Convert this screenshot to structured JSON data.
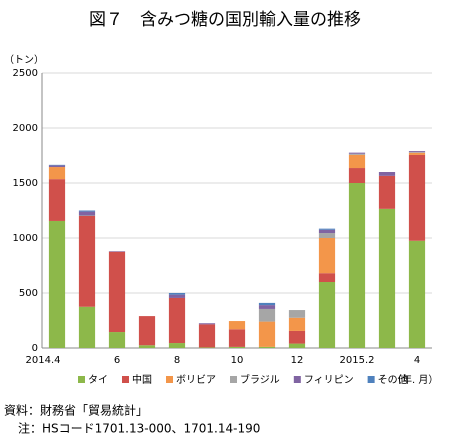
{
  "chart_data": {
    "type": "stacked_bar",
    "title": "図７　含みつ糖の国別輸入量の推移",
    "y_label": "（トン）",
    "x_label": "（年. 月）",
    "categories": [
      "2014.4",
      null,
      "6",
      null,
      "8",
      null,
      "10",
      null,
      "12",
      null,
      "2015.2",
      null,
      "4"
    ],
    "series": [
      {
        "name": "タイ",
        "color": "#8db84a",
        "values": [
          1155,
          375,
          145,
          25,
          45,
          5,
          10,
          10,
          40,
          600,
          1500,
          1265,
          975
        ]
      },
      {
        "name": "中国",
        "color": "#d0504b",
        "values": [
          380,
          825,
          730,
          265,
          410,
          210,
          160,
          0,
          115,
          80,
          136,
          300,
          780
        ]
      },
      {
        "name": "ボリビア",
        "color": "#f3964a",
        "values": [
          110,
          0,
          0,
          0,
          0,
          0,
          75,
          230,
          120,
          320,
          120,
          0,
          20
        ]
      },
      {
        "name": "ブラジル",
        "color": "#a6a6a6",
        "values": [
          0,
          5,
          0,
          0,
          0,
          0,
          0,
          115,
          70,
          45,
          10,
          0,
          5
        ]
      },
      {
        "name": "フィリピン",
        "color": "#8064a2",
        "values": [
          15,
          35,
          5,
          0,
          30,
          10,
          0,
          35,
          0,
          30,
          10,
          35,
          10
        ]
      },
      {
        "name": "その他",
        "color": "#4f81bd",
        "values": [
          5,
          10,
          0,
          0,
          15,
          0,
          0,
          20,
          0,
          10,
          0,
          0,
          0
        ]
      }
    ],
    "ylim": [
      0,
      2500
    ],
    "yticks": [
      0,
      500,
      1000,
      1500,
      2000,
      2500
    ],
    "grid": true,
    "legend": "bottom",
    "notes": [
      "資料：財務省「貿易統計」",
      "注：HSコード1701.13-000、1701.14-190"
    ]
  }
}
